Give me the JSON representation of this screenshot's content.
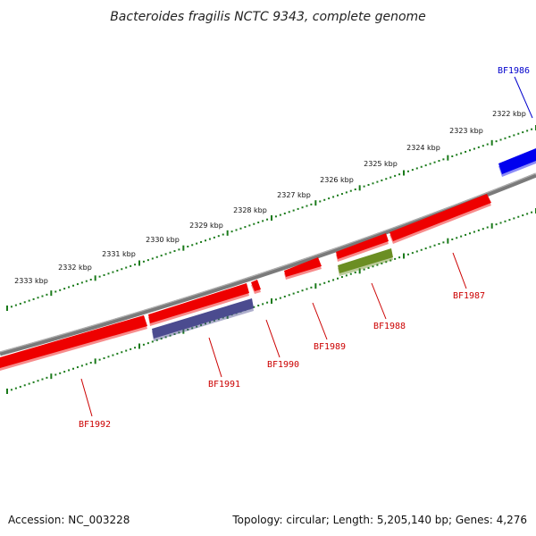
{
  "title": "Bacteroides fragilis NCTC 9343, complete genome",
  "footer": {
    "accession": "Accession: NC_003228",
    "summary": "Topology: circular; Length: 5,205,140 bp; Genes: 4,276"
  },
  "scale": {
    "ticks": [
      "2322 kbp",
      "2323 kbp",
      "2324 kbp",
      "2325 kbp",
      "2326 kbp",
      "2327 kbp",
      "2328 kbp",
      "2329 kbp",
      "2330 kbp",
      "2331 kbp",
      "2332 kbp",
      "2333 kbp"
    ]
  },
  "colors": {
    "backbone": "#808080",
    "tick_track": "#1a7a1a",
    "red": "#ee0000",
    "blue": "#0000ee",
    "purple": "#4b4b8f",
    "olive": "#6b8e23",
    "label_red": "#cc0000",
    "label_blue": "#0000cc"
  },
  "genes": [
    {
      "id": "BF1986",
      "color": "blue"
    },
    {
      "id": "BF1987",
      "color": "red"
    },
    {
      "id": "BF1988",
      "color": "olive"
    },
    {
      "id": "BF1989",
      "color": "red"
    },
    {
      "id": "BF1990",
      "color": "red"
    },
    {
      "id": "BF1991",
      "color": "purple"
    },
    {
      "id": "BF1992",
      "color": "red"
    }
  ]
}
